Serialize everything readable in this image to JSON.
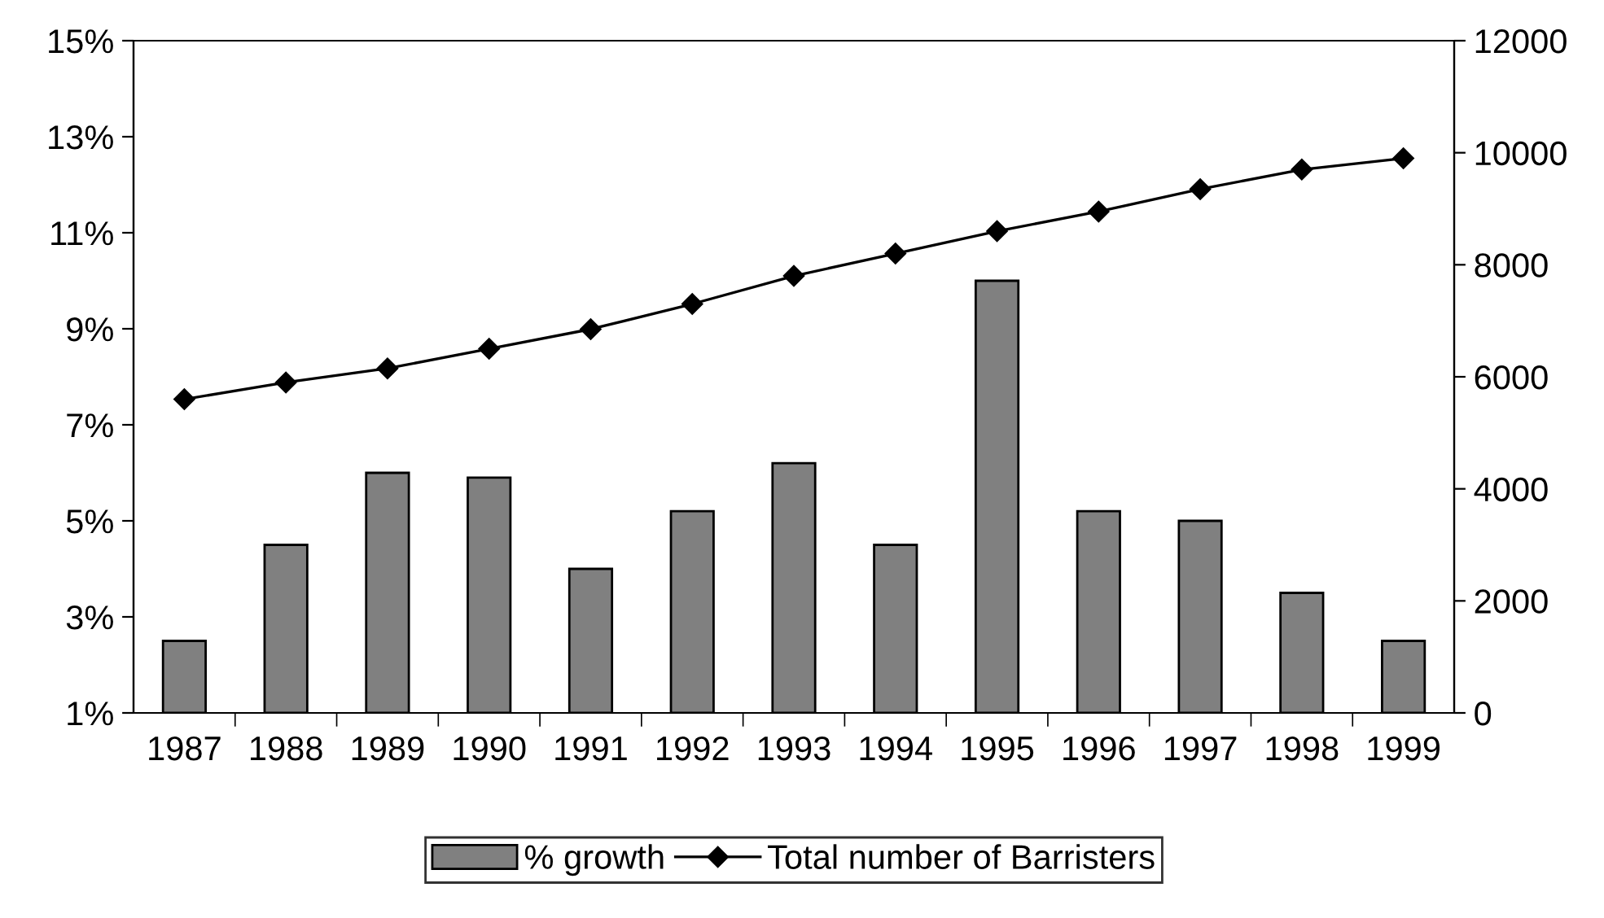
{
  "chart_data": {
    "type": "bar",
    "categories": [
      "1987",
      "1988",
      "1989",
      "1990",
      "1991",
      "1992",
      "1993",
      "1994",
      "1995",
      "1996",
      "1997",
      "1998",
      "1999"
    ],
    "series": [
      {
        "name": "% growth",
        "color": "#808080",
        "values": [
          2.5,
          4.5,
          6.0,
          5.9,
          4.0,
          5.2,
          6.2,
          4.5,
          10.0,
          5.2,
          5.0,
          3.5,
          2.5
        ]
      },
      {
        "name": "Total number of Barristers",
        "type": "line",
        "axis": "y2",
        "color": "#000000",
        "marker": "diamond",
        "values": [
          5600,
          5900,
          6150,
          6500,
          6850,
          7300,
          7800,
          8200,
          8600,
          8950,
          9350,
          9700,
          9900
        ]
      }
    ],
    "ylim": [
      1,
      15
    ],
    "yticks": [
      {
        "value": 1,
        "label": "1%"
      },
      {
        "value": 3,
        "label": "3%"
      },
      {
        "value": 5,
        "label": "5%"
      },
      {
        "value": 7,
        "label": "7%"
      },
      {
        "value": 9,
        "label": "9%"
      },
      {
        "value": 11,
        "label": "11%"
      },
      {
        "value": 13,
        "label": "13%"
      },
      {
        "value": 15,
        "label": "15%"
      }
    ],
    "y2lim": [
      0,
      12000
    ],
    "y2ticks": [
      0,
      2000,
      4000,
      6000,
      8000,
      10000,
      12000
    ],
    "grid": false,
    "legend": "bottom"
  }
}
